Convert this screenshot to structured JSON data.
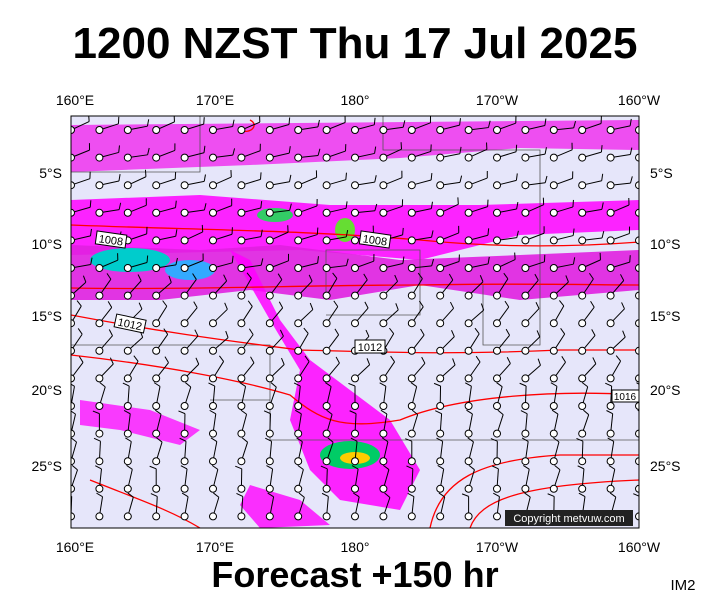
{
  "header": {
    "title": "1200 NZST Thu 17 Jul 2025"
  },
  "map": {
    "lon_labels": [
      "160°E",
      "170°E",
      "180°",
      "170°W",
      "160°W"
    ],
    "lat_labels": [
      "5°S",
      "10°S",
      "15°S",
      "20°S",
      "25°S"
    ],
    "isobar_labels": [
      "1008",
      "1008",
      "1012",
      "1012",
      "1016"
    ],
    "copyright": "Copyright metvuw.com"
  },
  "footer": {
    "subtitle": "Forecast +150 hr",
    "code": "IM2"
  }
}
